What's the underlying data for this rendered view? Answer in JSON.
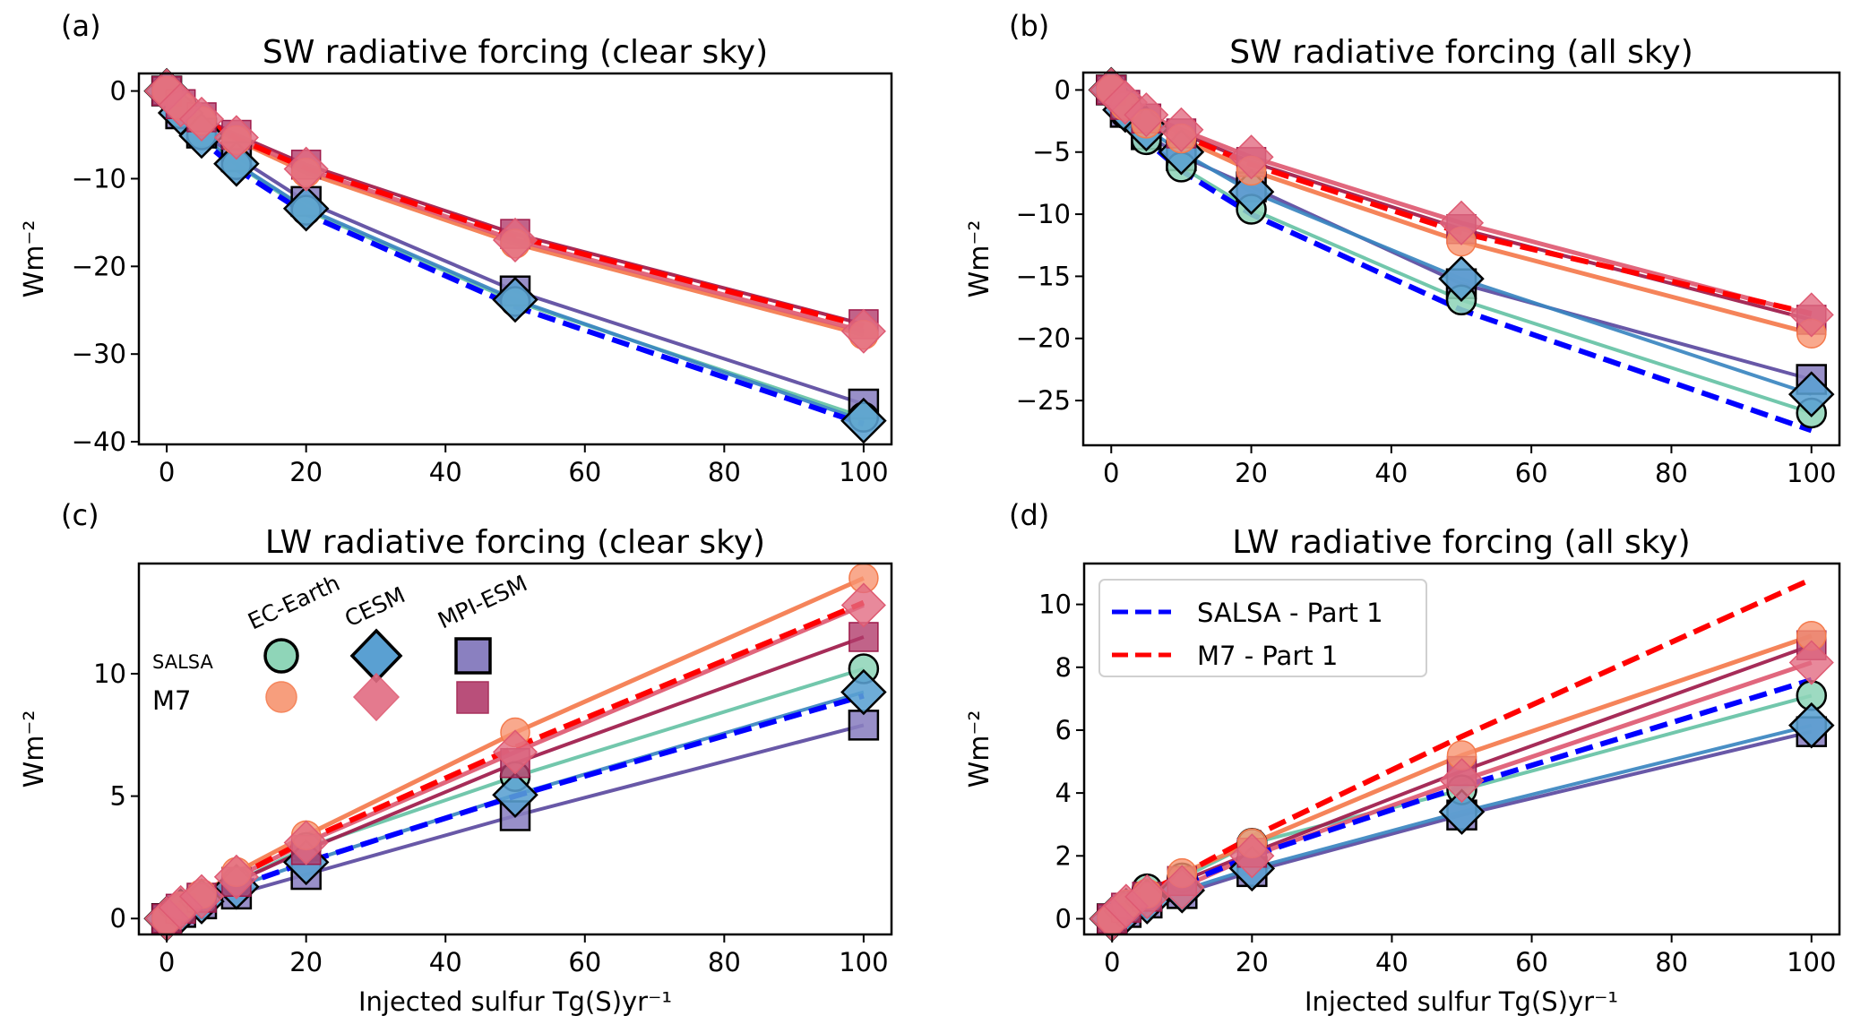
{
  "figure": {
    "legend_models": [
      "EC-Earth",
      "CESM",
      "MPI-ESM"
    ],
    "legend_schemes": [
      "SALSA",
      "M7"
    ],
    "reference_legend": [
      "SALSA - Part 1",
      "M7 - Part 1"
    ]
  },
  "colors": {
    "salsa_ec_line": "#66c2a5",
    "salsa_ec_fill": "#8fd5b8",
    "salsa_cesm_line": "#3a86c0",
    "salsa_cesm_fill": "#5aa0d2",
    "salsa_mpi_line": "#5b4aa0",
    "salsa_mpi_fill": "#8a80c0",
    "m7_ec_line": "#f47a4c",
    "m7_ec_fill": "#f79470",
    "m7_cesm_line": "#de5a72",
    "m7_cesm_fill": "#e26c82",
    "m7_mpi_line": "#9e1a4a",
    "m7_mpi_fill": "#b23c6c",
    "ref_salsa": "#0000ff",
    "ref_m7": "#ff0000"
  },
  "chart_data": [
    {
      "panel": "(a)",
      "type": "line",
      "title": "SW radiative forcing (clear sky)",
      "xlabel": "",
      "ylabel": "Wm⁻²",
      "xlim": [
        -4,
        104
      ],
      "ylim": [
        -40.3,
        2
      ],
      "xticks": [
        0,
        20,
        40,
        60,
        80,
        100
      ],
      "yticks": [
        0,
        -10,
        -20,
        -30,
        -40
      ],
      "ytick_labels": [
        "0",
        "−10",
        "−20",
        "−30",
        "−40"
      ],
      "x": [
        0,
        2,
        5,
        10,
        20,
        50,
        100
      ],
      "series": [
        {
          "name": "SALSA EC-Earth",
          "scheme": "SALSA",
          "model": "EC-Earth",
          "marker": "circle",
          "values": [
            0,
            -2.6,
            -5.0,
            -8.4,
            -13.6,
            -24.0,
            -37.2
          ]
        },
        {
          "name": "SALSA CESM",
          "scheme": "SALSA",
          "model": "CESM",
          "marker": "diamond",
          "values": [
            0,
            -2.5,
            -5.1,
            -8.3,
            -13.4,
            -23.8,
            -37.6
          ]
        },
        {
          "name": "SALSA MPI-ESM",
          "scheme": "SALSA",
          "model": "MPI-ESM",
          "marker": "square",
          "values": [
            0,
            -2.6,
            -4.8,
            -7.5,
            -12.6,
            -22.8,
            -35.7
          ]
        },
        {
          "name": "M7 EC-Earth",
          "scheme": "M7",
          "model": "EC-Earth",
          "marker": "circle",
          "values": [
            0,
            -1.7,
            -3.4,
            -5.6,
            -9.3,
            -17.4,
            -27.8
          ]
        },
        {
          "name": "M7 CESM",
          "scheme": "M7",
          "model": "CESM",
          "marker": "diamond",
          "values": [
            0,
            -1.6,
            -3.2,
            -5.3,
            -8.9,
            -17.0,
            -27.4
          ]
        },
        {
          "name": "M7 MPI-ESM",
          "scheme": "M7",
          "model": "MPI-ESM",
          "marker": "square",
          "values": [
            0,
            -1.5,
            -3.0,
            -5.0,
            -8.4,
            -16.3,
            -26.6
          ]
        },
        {
          "name": "SALSA - Part 1",
          "scheme": "SALSA",
          "model": "Part 1",
          "marker": "none",
          "dashed": true,
          "values": [
            0,
            -2.8,
            -5.6,
            -8.9,
            -14.0,
            -24.6,
            -38.0
          ]
        },
        {
          "name": "M7 - Part 1",
          "scheme": "M7",
          "model": "Part 1",
          "marker": "none",
          "dashed": true,
          "values": [
            0,
            -1.6,
            -3.2,
            -5.4,
            -8.8,
            -16.6,
            -26.8
          ]
        }
      ]
    },
    {
      "panel": "(b)",
      "type": "line",
      "title": "SW radiative forcing (all sky)",
      "xlabel": "",
      "ylabel": "Wm⁻²",
      "xlim": [
        -4,
        104
      ],
      "ylim": [
        -28.6,
        1.4
      ],
      "xticks": [
        0,
        20,
        40,
        60,
        80,
        100
      ],
      "yticks": [
        0,
        -5,
        -10,
        -15,
        -20,
        -25
      ],
      "ytick_labels": [
        "0",
        "−5",
        "−10",
        "−15",
        "−20",
        "−25"
      ],
      "x": [
        0,
        2,
        5,
        10,
        20,
        50,
        100
      ],
      "series": [
        {
          "name": "SALSA EC-Earth",
          "scheme": "SALSA",
          "model": "EC-Earth",
          "marker": "circle",
          "values": [
            0,
            -1.9,
            -4.0,
            -6.2,
            -9.6,
            -16.9,
            -26.0
          ]
        },
        {
          "name": "SALSA CESM",
          "scheme": "SALSA",
          "model": "CESM",
          "marker": "diamond",
          "values": [
            0,
            -1.6,
            -3.1,
            -5.0,
            -8.2,
            -15.2,
            -24.5
          ]
        },
        {
          "name": "SALSA MPI-ESM",
          "scheme": "SALSA",
          "model": "MPI-ESM",
          "marker": "square",
          "values": [
            0,
            -1.8,
            -3.6,
            -5.3,
            -7.8,
            -15.6,
            -23.3
          ]
        },
        {
          "name": "M7 EC-Earth",
          "scheme": "M7",
          "model": "EC-Earth",
          "marker": "circle",
          "values": [
            0,
            -1.3,
            -2.7,
            -3.9,
            -6.5,
            -12.2,
            -19.6
          ]
        },
        {
          "name": "M7 CESM",
          "scheme": "M7",
          "model": "CESM",
          "marker": "diamond",
          "values": [
            0,
            -1.0,
            -2.0,
            -3.2,
            -5.4,
            -10.7,
            -18.1
          ]
        },
        {
          "name": "M7 MPI-ESM",
          "scheme": "M7",
          "model": "MPI-ESM",
          "marker": "square",
          "values": [
            0,
            -1.2,
            -2.3,
            -3.5,
            -5.8,
            -11.2,
            -18.5
          ]
        },
        {
          "name": "SALSA - Part 1",
          "scheme": "SALSA",
          "model": "Part 1",
          "marker": "none",
          "dashed": true,
          "values": [
            0,
            -2.1,
            -4.1,
            -6.5,
            -10.0,
            -17.7,
            -27.4
          ]
        },
        {
          "name": "M7 - Part 1",
          "scheme": "M7",
          "model": "Part 1",
          "marker": "none",
          "dashed": true,
          "values": [
            0,
            -1.2,
            -2.4,
            -3.6,
            -6.0,
            -11.5,
            -18.0
          ]
        }
      ]
    },
    {
      "panel": "(c)",
      "type": "line",
      "title": "LW radiative forcing (clear sky)",
      "xlabel": "Injected sulfur Tg(S)yr⁻¹",
      "ylabel": "Wm⁻²",
      "xlim": [
        -4,
        104
      ],
      "ylim": [
        -0.65,
        14.5
      ],
      "xticks": [
        0,
        20,
        40,
        60,
        80,
        100
      ],
      "yticks": [
        0,
        5,
        10
      ],
      "ytick_labels": [
        "0",
        "5",
        "10"
      ],
      "x": [
        0,
        2,
        5,
        10,
        20,
        50,
        100
      ],
      "series": [
        {
          "name": "SALSA EC-Earth",
          "scheme": "SALSA",
          "model": "EC-Earth",
          "marker": "circle",
          "values": [
            0,
            0.4,
            0.8,
            1.5,
            2.9,
            5.8,
            10.2
          ]
        },
        {
          "name": "SALSA CESM",
          "scheme": "SALSA",
          "model": "CESM",
          "marker": "diamond",
          "values": [
            0,
            0.3,
            0.7,
            1.3,
            2.3,
            5.05,
            9.25
          ]
        },
        {
          "name": "SALSA MPI-ESM",
          "scheme": "SALSA",
          "model": "MPI-ESM",
          "marker": "square",
          "values": [
            0,
            0.25,
            0.6,
            1.0,
            1.8,
            4.2,
            7.9
          ]
        },
        {
          "name": "M7 EC-Earth",
          "scheme": "M7",
          "model": "EC-Earth",
          "marker": "circle",
          "values": [
            0,
            0.5,
            1.0,
            1.9,
            3.4,
            7.6,
            13.9
          ]
        },
        {
          "name": "M7 CESM",
          "scheme": "M7",
          "model": "CESM",
          "marker": "diamond",
          "values": [
            0,
            0.45,
            0.9,
            1.7,
            3.1,
            6.8,
            12.8
          ]
        },
        {
          "name": "M7 MPI-ESM",
          "scheme": "M7",
          "model": "MPI-ESM",
          "marker": "square",
          "values": [
            0,
            0.4,
            0.85,
            1.5,
            2.8,
            6.35,
            11.5
          ]
        },
        {
          "name": "SALSA - Part 1",
          "scheme": "SALSA",
          "model": "Part 1",
          "marker": "none",
          "dashed": true,
          "values": [
            0,
            0.3,
            0.7,
            1.3,
            2.3,
            5.0,
            9.1
          ]
        },
        {
          "name": "M7 - Part 1",
          "scheme": "M7",
          "model": "Part 1",
          "marker": "none",
          "dashed": true,
          "values": [
            0,
            0.45,
            0.95,
            1.7,
            3.2,
            7.0,
            12.9
          ]
        }
      ]
    },
    {
      "panel": "(d)",
      "type": "line",
      "title": "LW radiative forcing (all sky)",
      "xlabel": "Injected sulfur Tg(S)yr⁻¹",
      "ylabel": "Wm⁻²",
      "xlim": [
        -4,
        104
      ],
      "ylim": [
        -0.5,
        11.3
      ],
      "xticks": [
        0,
        20,
        40,
        60,
        80,
        100
      ],
      "yticks": [
        0,
        2,
        4,
        6,
        8,
        10
      ],
      "ytick_labels": [
        "0",
        "2",
        "4",
        "6",
        "8",
        "10"
      ],
      "legend_position": "upper-left",
      "x": [
        0,
        2,
        5,
        10,
        20,
        50,
        100
      ],
      "series": [
        {
          "name": "SALSA EC-Earth",
          "scheme": "SALSA",
          "model": "EC-Earth",
          "marker": "circle",
          "values": [
            0,
            0.4,
            0.95,
            1.3,
            2.4,
            4.1,
            7.1
          ]
        },
        {
          "name": "SALSA CESM",
          "scheme": "SALSA",
          "model": "CESM",
          "marker": "diamond",
          "values": [
            0,
            0.25,
            0.55,
            0.9,
            1.6,
            3.4,
            6.15
          ]
        },
        {
          "name": "SALSA MPI-ESM",
          "scheme": "SALSA",
          "model": "MPI-ESM",
          "marker": "square",
          "values": [
            0,
            0.2,
            0.5,
            0.8,
            1.5,
            3.3,
            5.95
          ]
        },
        {
          "name": "M7 EC-Earth",
          "scheme": "M7",
          "model": "EC-Earth",
          "marker": "circle",
          "values": [
            0,
            0.45,
            0.8,
            1.45,
            2.4,
            5.2,
            9.0
          ]
        },
        {
          "name": "M7 CESM",
          "scheme": "M7",
          "model": "CESM",
          "marker": "diamond",
          "values": [
            0,
            0.4,
            0.7,
            1.0,
            2.0,
            4.4,
            8.15
          ]
        },
        {
          "name": "M7 MPI-ESM",
          "scheme": "M7",
          "model": "MPI-ESM",
          "marker": "square",
          "values": [
            0,
            0.35,
            0.7,
            1.2,
            2.1,
            4.7,
            8.7
          ]
        },
        {
          "name": "SALSA - Part 1",
          "scheme": "SALSA",
          "model": "Part 1",
          "marker": "none",
          "dashed": true,
          "values": [
            0,
            0.3,
            0.65,
            1.1,
            2.0,
            4.2,
            7.6
          ]
        },
        {
          "name": "M7 - Part 1",
          "scheme": "M7",
          "model": "Part 1",
          "marker": "none",
          "dashed": true,
          "values": [
            0,
            0.4,
            0.85,
            1.4,
            2.6,
            5.8,
            10.8
          ]
        }
      ]
    }
  ]
}
